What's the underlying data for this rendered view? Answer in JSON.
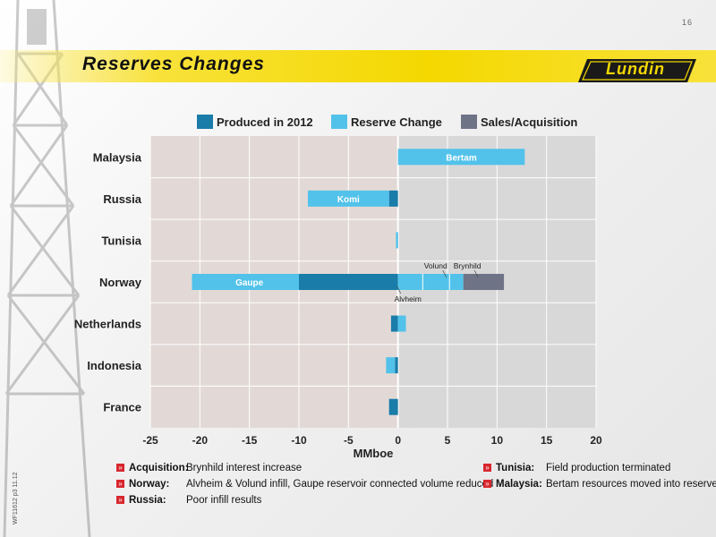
{
  "page_number": "16",
  "title": "Reserves Changes",
  "logo_text": "Lundin",
  "side_code": "WF11612 p3 11.12",
  "colors": {
    "produced": "#1a7ca8",
    "reserve_change": "#52c2ea",
    "sales_acquisition": "#6f7386",
    "band": "#f4d800",
    "bullet": "#d8262d"
  },
  "chart_data": {
    "type": "bar",
    "orientation": "horizontal",
    "stacked": true,
    "categories": [
      "Malaysia",
      "Russia",
      "Tunisia",
      "Norway",
      "Netherlands",
      "Indonesia",
      "France"
    ],
    "series": [
      {
        "name": "Produced in 2012",
        "color": "#1a7ca8",
        "values": [
          0,
          -0.9,
          0,
          -10,
          -0.7,
          -0.3,
          -0.9
        ]
      },
      {
        "name": "Reserve Change",
        "color": "#52c2ea",
        "values": [
          12.8,
          -8.2,
          -0.2,
          -10.8,
          0.8,
          -0.9,
          0
        ],
        "positive_values": [
          12.8,
          0,
          0,
          6.6,
          0.8,
          0,
          0
        ]
      },
      {
        "name": "Sales/Acquisition",
        "color": "#6f7386",
        "values": [
          0,
          0,
          0,
          4.1,
          0,
          0,
          0
        ]
      }
    ],
    "bar_labels": [
      {
        "category": "Malaysia",
        "text": "Bertam",
        "x": 6.4
      },
      {
        "category": "Russia",
        "text": "Komi",
        "x": -5.0
      },
      {
        "category": "Norway",
        "text": "Gaupe",
        "x": -15.0
      }
    ],
    "annotations": [
      {
        "category": "Norway",
        "text": "Volund",
        "x": 3.8,
        "pos": "above"
      },
      {
        "category": "Norway",
        "text": "Brynhild",
        "x": 7.0,
        "pos": "above"
      },
      {
        "category": "Norway",
        "text": "Alvheim",
        "x": 1.0,
        "pos": "below"
      }
    ],
    "xlabel": "MMboe",
    "xlim": [
      -25,
      20
    ],
    "xticks": [
      -25,
      -20,
      -15,
      -10,
      -5,
      0,
      5,
      10,
      15,
      20
    ],
    "grid": true,
    "legend_position": "top"
  },
  "notes_left": [
    {
      "label": "Acquisition:",
      "text": "Brynhild interest increase"
    },
    {
      "label": "Norway:",
      "text": "Alvheim & Volund infill, Gaupe reservoir connected volume reduced"
    },
    {
      "label": "Russia:",
      "text": "Poor infill results"
    }
  ],
  "notes_right": [
    {
      "label": "Tunisia:",
      "text": "Field production terminated"
    },
    {
      "label": "Malaysia:",
      "text": "Bertam resources moved into reserves"
    }
  ]
}
